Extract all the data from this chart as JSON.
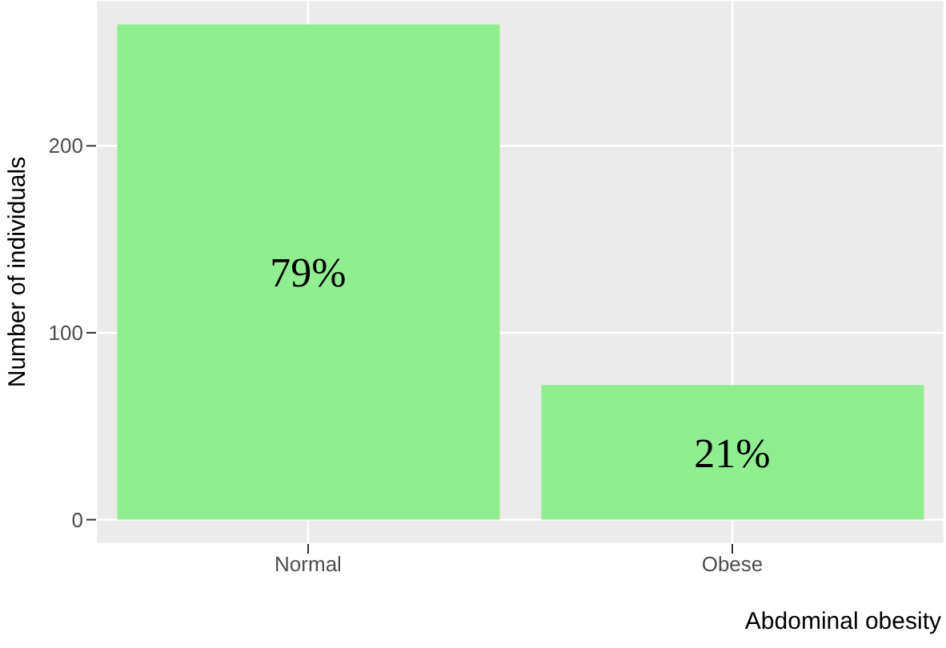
{
  "chart_data": {
    "type": "bar",
    "categories": [
      "Normal",
      "Obese"
    ],
    "values": [
      265,
      72
    ],
    "annotations": [
      "79%",
      "21%"
    ],
    "color": "#90ee90",
    "xlabel": "Abdominal obesity",
    "ylabel": "Number of individuals",
    "ylim": [
      -13,
      278
    ],
    "yticks": [
      0,
      100,
      200
    ],
    "grid": true
  }
}
